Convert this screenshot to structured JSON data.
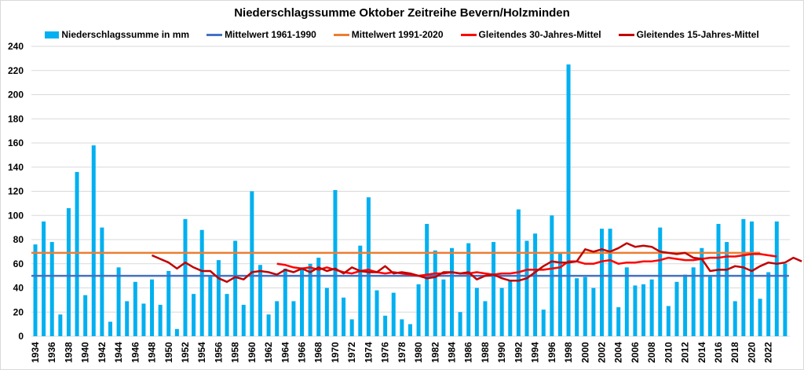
{
  "chart_data": {
    "type": "bar",
    "title": "Niederschlagssumme Oktober Zeitreihe Bevern/Holzminden",
    "xlabel": "",
    "ylabel": "",
    "ylim": [
      0,
      240
    ],
    "yticks": [
      0,
      20,
      40,
      60,
      80,
      100,
      120,
      140,
      160,
      180,
      200,
      220,
      240
    ],
    "grid": true,
    "legend_position": "top",
    "x": [
      1934,
      1935,
      1936,
      1937,
      1938,
      1939,
      1940,
      1941,
      1942,
      1943,
      1944,
      1945,
      1946,
      1947,
      1948,
      1949,
      1950,
      1951,
      1952,
      1953,
      1954,
      1955,
      1956,
      1957,
      1958,
      1959,
      1960,
      1961,
      1962,
      1963,
      1964,
      1965,
      1966,
      1967,
      1968,
      1969,
      1970,
      1971,
      1972,
      1973,
      1974,
      1975,
      1976,
      1977,
      1978,
      1979,
      1980,
      1981,
      1982,
      1983,
      1984,
      1985,
      1986,
      1987,
      1988,
      1989,
      1990,
      1991,
      1992,
      1993,
      1994,
      1995,
      1996,
      1997,
      1998,
      1999,
      2000,
      2001,
      2002,
      2003,
      2004,
      2005,
      2006,
      2007,
      2008,
      2009,
      2010,
      2011,
      2012,
      2013,
      2014,
      2015,
      2016,
      2017,
      2018,
      2019,
      2020,
      2021,
      2022,
      2023,
      2024
    ],
    "xtick_labels": [
      "1934",
      "1936",
      "1938",
      "1940",
      "1942",
      "1944",
      "1946",
      "1948",
      "1950",
      "1952",
      "1954",
      "1956",
      "1958",
      "1960",
      "1962",
      "1964",
      "1966",
      "1968",
      "1970",
      "1972",
      "1974",
      "1976",
      "1978",
      "1980",
      "1982",
      "1984",
      "1986",
      "1988",
      "1990",
      "1992",
      "1994",
      "1996",
      "1998",
      "2000",
      "2002",
      "2004",
      "2006",
      "2008",
      "2010",
      "2012",
      "2014",
      "2016",
      "2018",
      "2020",
      "2022"
    ],
    "series": [
      {
        "name": "Niederschlagssumme in mm",
        "kind": "bar",
        "color": "#00b0f0",
        "values": [
          76,
          95,
          78,
          18,
          106,
          136,
          34,
          158,
          90,
          12,
          57,
          29,
          45,
          27,
          47,
          26,
          54,
          6,
          97,
          35,
          88,
          50,
          63,
          35,
          79,
          26,
          120,
          59,
          18,
          29,
          56,
          29,
          57,
          60,
          65,
          40,
          121,
          32,
          14,
          75,
          115,
          38,
          17,
          36,
          14,
          10,
          43,
          93,
          71,
          47,
          73,
          20,
          77,
          40,
          29,
          78,
          40,
          46,
          105,
          79,
          85,
          22,
          100,
          69,
          225,
          48,
          49,
          40,
          89,
          89,
          24,
          57,
          42,
          43,
          47,
          90,
          25,
          45,
          51,
          57,
          73,
          50,
          93,
          78,
          29,
          97,
          95,
          31,
          53,
          95,
          60
        ]
      },
      {
        "name": "Mittelwert 1961-1990",
        "kind": "hline",
        "color": "#4472c4",
        "value": 50,
        "x_range": [
          1934,
          2024
        ]
      },
      {
        "name": "Mittelwert 1991-2020",
        "kind": "hline",
        "color": "#ed7d31",
        "value": 69,
        "x_range": [
          1934,
          2021
        ]
      },
      {
        "name": "Gleitendes 30-Jahres-Mittel",
        "kind": "line",
        "color": "#ff0000",
        "start_year": 1963,
        "values": [
          60,
          59,
          57,
          56,
          57,
          55,
          57,
          55,
          53,
          52,
          54,
          55,
          53,
          52,
          53,
          52,
          51,
          50,
          51,
          52,
          52,
          53,
          52,
          52,
          53,
          52,
          51,
          52,
          52,
          53,
          55,
          55,
          55,
          56,
          57,
          62,
          62,
          60,
          60,
          62,
          63,
          60,
          61,
          61,
          62,
          62,
          63,
          65,
          64,
          63,
          63,
          64,
          65,
          65,
          66,
          66,
          67,
          68,
          68,
          67,
          66
        ]
      },
      {
        "name": "Gleitendes 15-Jahres-Mittel",
        "kind": "line",
        "color": "#c00000",
        "start_year": 1948,
        "values": [
          67,
          64,
          61,
          56,
          61,
          57,
          54,
          54,
          48,
          45,
          49,
          47,
          53,
          54,
          53,
          51,
          55,
          53,
          56,
          53,
          57,
          54,
          56,
          52,
          57,
          54,
          53,
          53,
          58,
          52,
          53,
          52,
          50,
          48,
          49,
          53,
          53,
          52,
          53,
          47,
          50,
          51,
          48,
          46,
          46,
          48,
          53,
          58,
          62,
          61,
          61,
          62,
          72,
          70,
          72,
          70,
          73,
          77,
          74,
          75,
          74,
          70,
          69,
          68,
          69,
          65,
          64,
          54,
          55,
          55,
          58,
          57,
          54,
          58,
          61,
          60,
          61,
          65,
          62
        ]
      }
    ]
  }
}
